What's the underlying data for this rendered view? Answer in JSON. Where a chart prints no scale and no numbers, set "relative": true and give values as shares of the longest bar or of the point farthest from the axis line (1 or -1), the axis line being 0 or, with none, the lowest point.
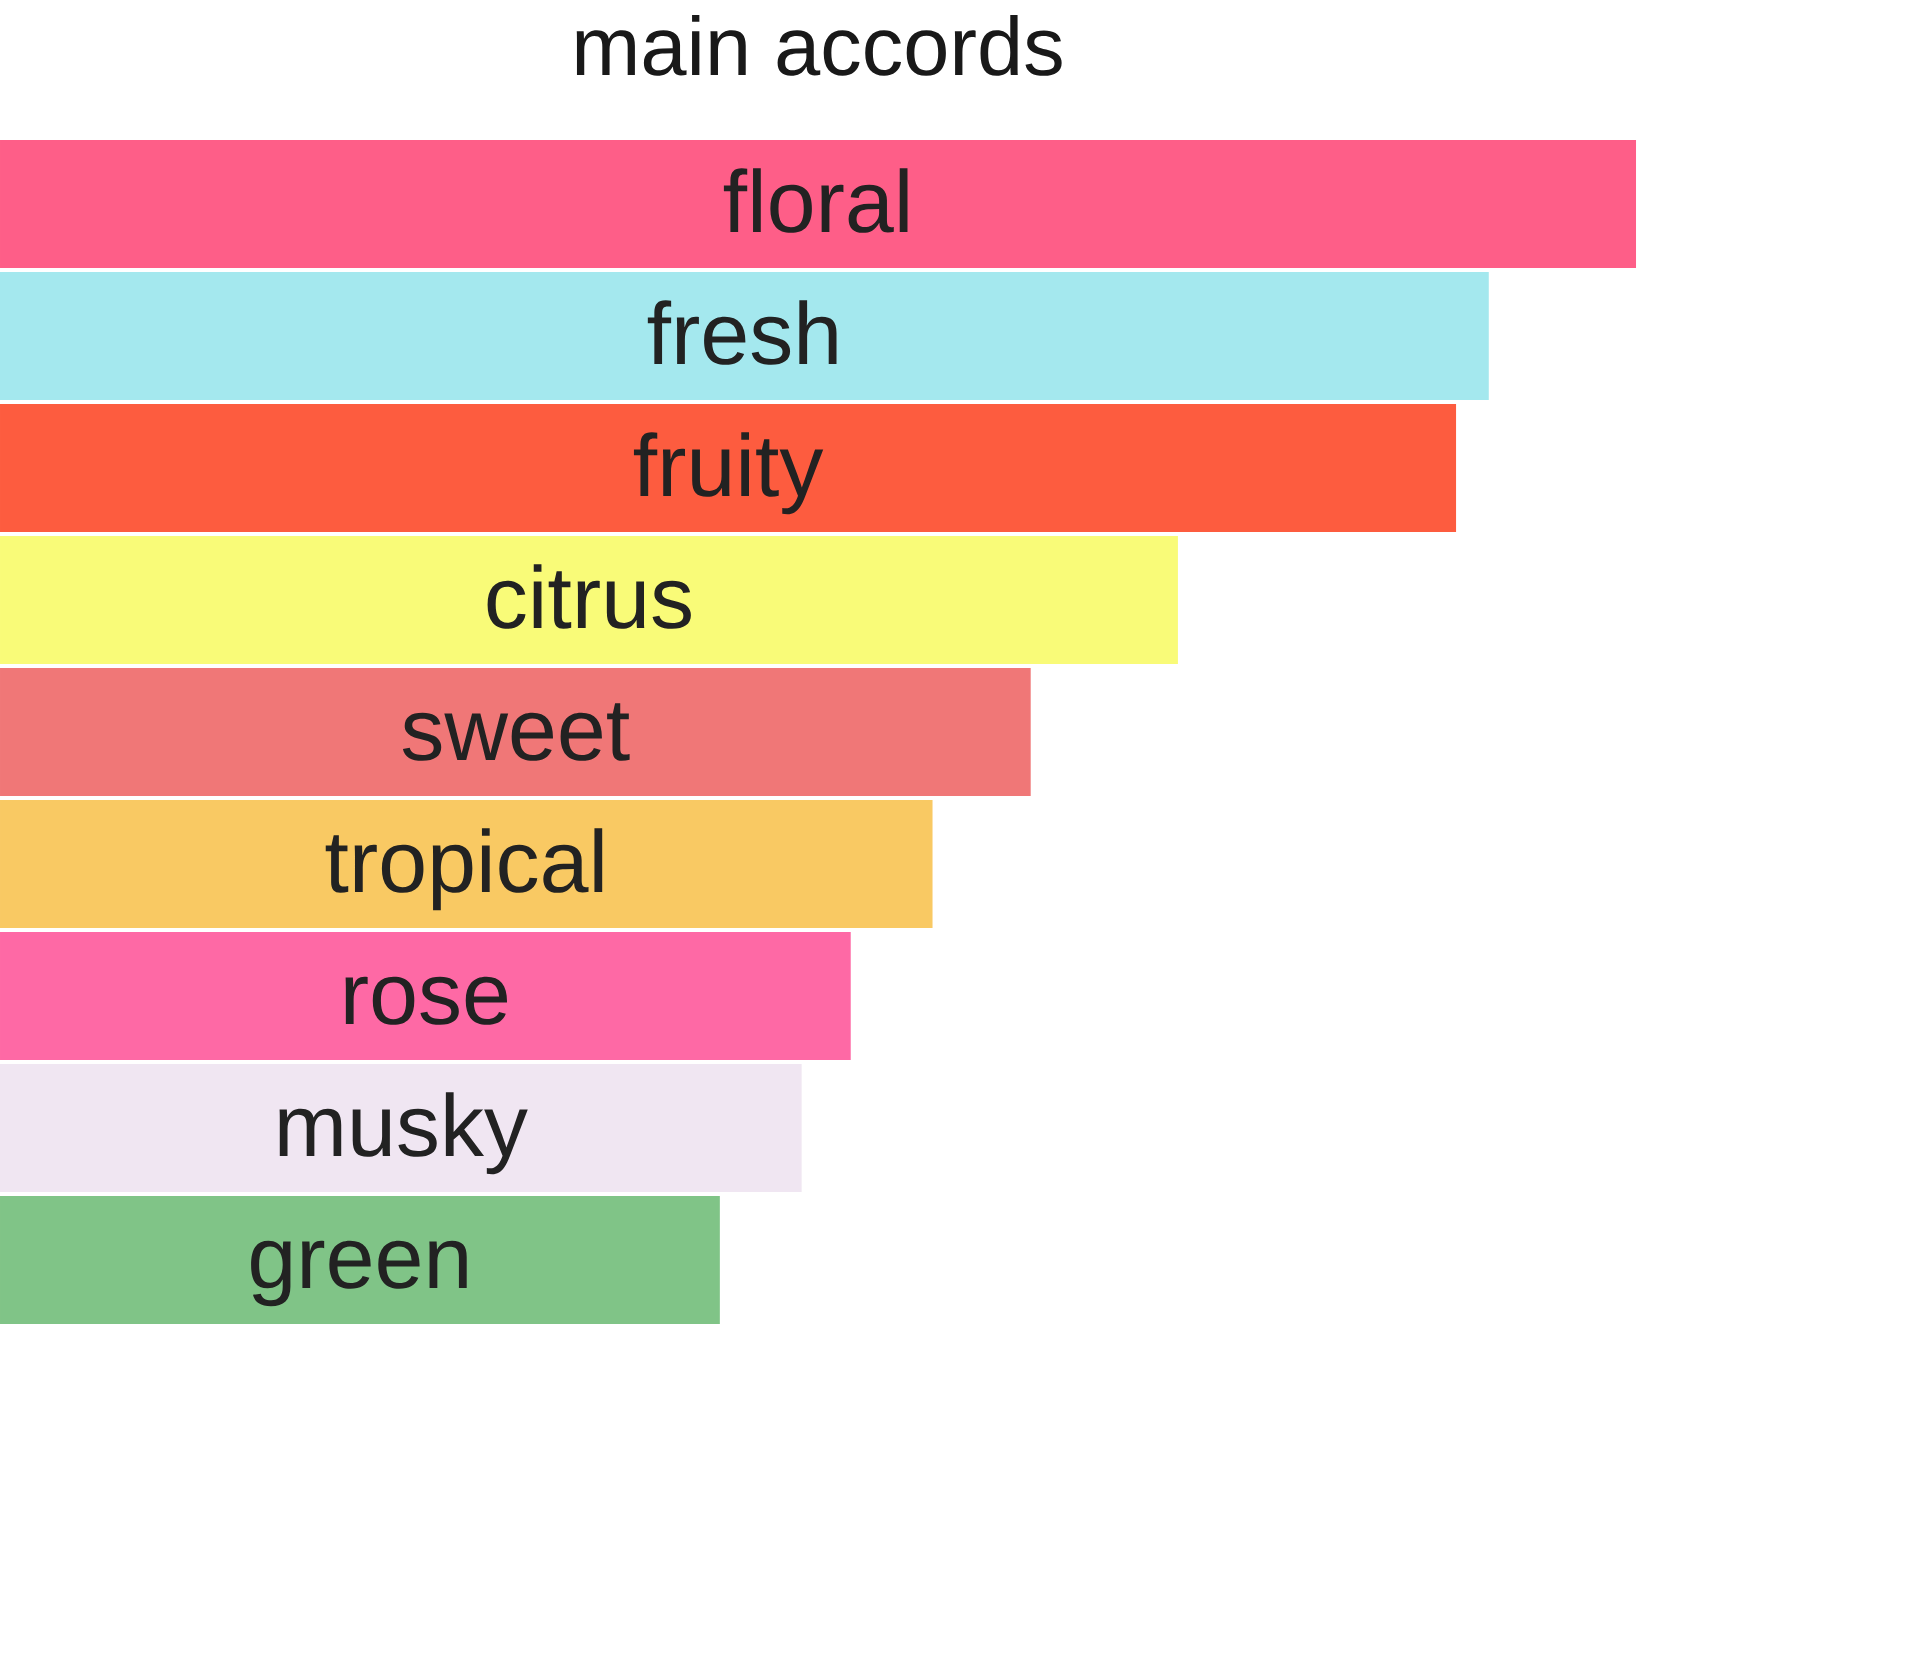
{
  "chart_data": {
    "type": "bar",
    "orientation": "horizontal",
    "relative": true,
    "title": "main accords",
    "categories": [
      "floral",
      "fresh",
      "fruity",
      "citrus",
      "sweet",
      "tropical",
      "rose",
      "musky",
      "green"
    ],
    "values": [
      1,
      0.91,
      0.89,
      0.72,
      0.63,
      0.57,
      0.52,
      0.49,
      0.44
    ],
    "colors": [
      "#fe5e88",
      "#a4e8ee",
      "#fd5c3f",
      "#f9fb78",
      "#f07777",
      "#f9c963",
      "#fe69a5",
      "#f0e6f2",
      "#80c487"
    ]
  }
}
